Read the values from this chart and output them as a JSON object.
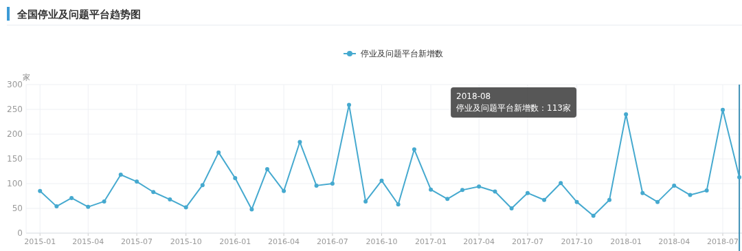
{
  "chart_data": {
    "type": "line",
    "title": "全国停业及问题平台趋势图",
    "ylabel": "家",
    "x": [
      "2015-01",
      "2015-02",
      "2015-03",
      "2015-04",
      "2015-05",
      "2015-06",
      "2015-07",
      "2015-08",
      "2015-09",
      "2015-10",
      "2015-11",
      "2015-12",
      "2016-01",
      "2016-02",
      "2016-03",
      "2016-04",
      "2016-05",
      "2016-06",
      "2016-07",
      "2016-08",
      "2016-09",
      "2016-10",
      "2016-11",
      "2016-12",
      "2017-01",
      "2017-02",
      "2017-03",
      "2017-04",
      "2017-05",
      "2017-06",
      "2017-07",
      "2017-08",
      "2017-09",
      "2017-10",
      "2017-11",
      "2017-12",
      "2018-01",
      "2018-02",
      "2018-03",
      "2018-04",
      "2018-05",
      "2018-06",
      "2018-07",
      "2018-08"
    ],
    "series": [
      {
        "name": "停业及问题平台新增数",
        "color": "#45a9cf",
        "values": [
          85,
          54,
          71,
          53,
          64,
          118,
          104,
          83,
          68,
          52,
          97,
          163,
          111,
          48,
          129,
          85,
          184,
          96,
          100,
          259,
          64,
          106,
          58,
          169,
          88,
          69,
          87,
          94,
          84,
          50,
          81,
          67,
          101,
          63,
          35,
          67,
          240,
          81,
          63,
          96,
          77,
          86,
          249,
          113
        ]
      }
    ],
    "xlim": [
      "2014-12-06",
      "2018-08-06"
    ],
    "xticks": [
      "2015-01",
      "2015-04",
      "2015-07",
      "2015-10",
      "2016-01",
      "2016-04",
      "2016-07",
      "2016-10",
      "2017-01",
      "2017-04",
      "2017-07",
      "2017-10",
      "2018-01",
      "2018-04",
      "2018-07"
    ],
    "ylim": [
      0,
      300
    ],
    "yticks": [
      0,
      50,
      100,
      150,
      200,
      250,
      300
    ],
    "grid": true,
    "legend": "top",
    "marker": "circle",
    "line_style": "solid",
    "ref_lines": [
      {
        "axis": "x",
        "value": "2018-08",
        "color": "#3d8fb5"
      }
    ],
    "annotations": [
      "2018-08",
      "停业及问题平台新增数：113家"
    ]
  }
}
